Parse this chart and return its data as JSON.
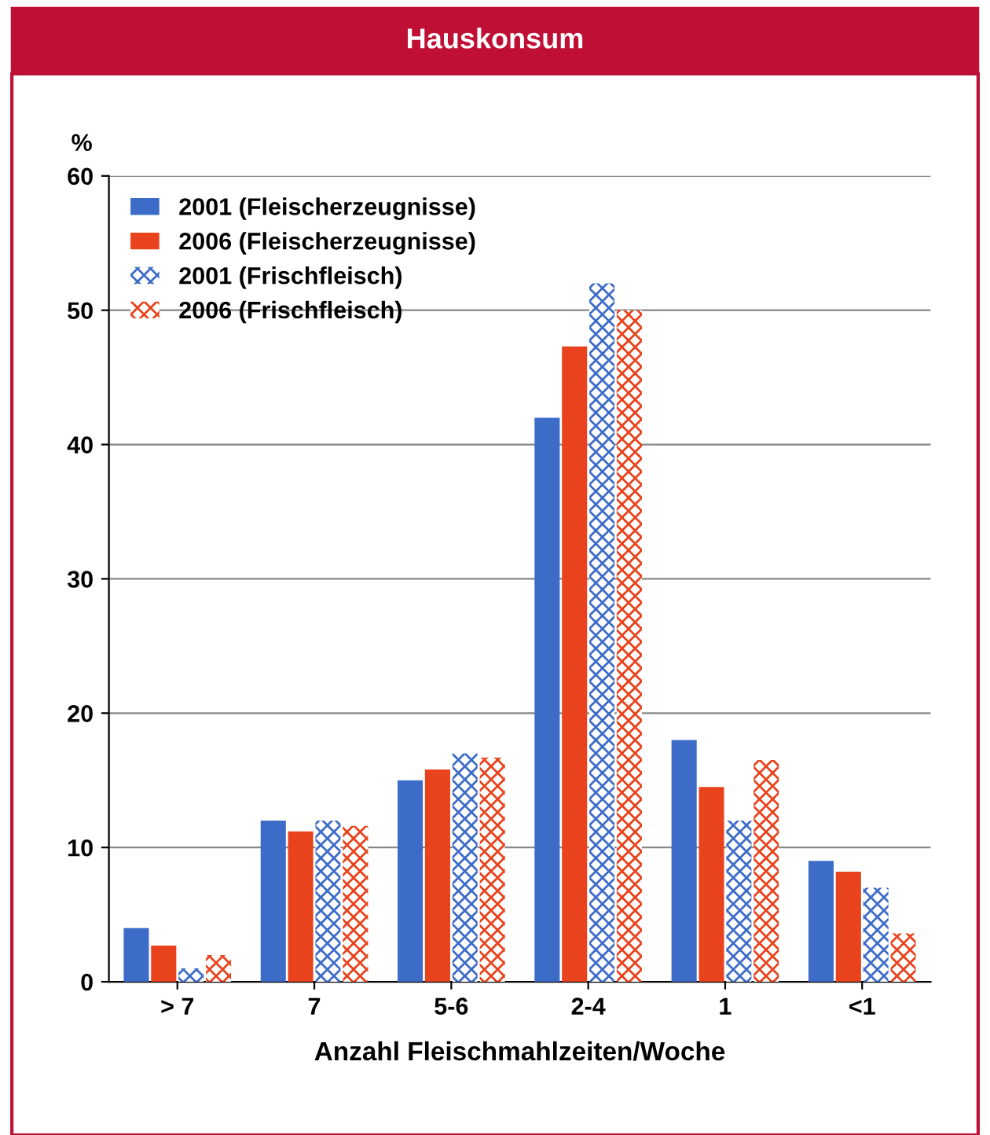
{
  "chart_data": {
    "type": "bar",
    "title": "Hauskonsum",
    "ylabel": "%",
    "xlabel": "Anzahl Fleischmahlzeiten/Woche",
    "categories": [
      "> 7",
      "7",
      "5-6",
      "2-4",
      "1",
      "<1"
    ],
    "series": [
      {
        "name": "2001 (Fleischerzeugnisse)",
        "color": "#3d6cc8",
        "values": [
          4,
          12,
          15,
          42,
          18,
          9
        ]
      },
      {
        "name": "2006 (Fleischerzeugnisse)",
        "color": "#e8431c",
        "values": [
          2.7,
          11.2,
          15.8,
          47.3,
          14.5,
          8.2
        ]
      },
      {
        "name": "2001 (Frischfleisch)",
        "color": "#3d6cc8",
        "values": [
          1,
          12,
          17,
          52,
          12,
          7
        ]
      },
      {
        "name": "2006 (Frischfleisch)",
        "color": "#e8431c",
        "values": [
          2,
          11.6,
          16.7,
          50,
          16.5,
          3.6
        ]
      }
    ],
    "ylim": [
      0,
      60
    ],
    "yticks": [
      0,
      10,
      20,
      30,
      40,
      50,
      60
    ],
    "grid": "y",
    "legend": "top left"
  }
}
